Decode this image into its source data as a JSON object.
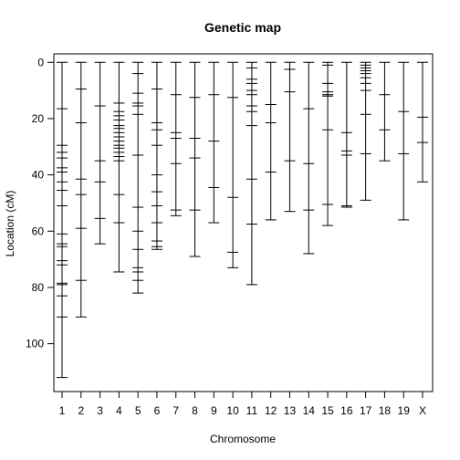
{
  "chart_data": {
    "type": "genetic-map",
    "title": "Genetic map",
    "xlabel": "Chromosome",
    "ylabel": "Location (cM)",
    "ylim": [
      117,
      -3
    ],
    "y_ticks": [
      0,
      20,
      40,
      60,
      80,
      100
    ],
    "grid": false,
    "colors": {
      "line": "#000000",
      "frame": "#000000",
      "background": "#ffffff"
    },
    "chromosomes": [
      {
        "name": "1",
        "markers": [
          0,
          16.5,
          29.5,
          32,
          34,
          37.5,
          39,
          42.5,
          45.5,
          51,
          61,
          64.5,
          65.5,
          70.5,
          72,
          78.5,
          79,
          83,
          90.5,
          112
        ]
      },
      {
        "name": "2",
        "markers": [
          0,
          9.5,
          21.5,
          41.5,
          47,
          59,
          77.5,
          90.5
        ]
      },
      {
        "name": "3",
        "markers": [
          0,
          15.5,
          35,
          42.5,
          55.5,
          64.5
        ]
      },
      {
        "name": "4",
        "markers": [
          0,
          14.5,
          17.5,
          19,
          20.5,
          22.5,
          23.5,
          25,
          26.5,
          28,
          29.5,
          30.5,
          32,
          33.5,
          35,
          47,
          57,
          74.5
        ]
      },
      {
        "name": "5",
        "markers": [
          0,
          4,
          11,
          14.5,
          15.5,
          18.5,
          33,
          51.5,
          60,
          66.5,
          73,
          74.5,
          77.5,
          82
        ]
      },
      {
        "name": "6",
        "markers": [
          0,
          9.5,
          21.5,
          24,
          29.5,
          40,
          46,
          51,
          57,
          63.5,
          65.5,
          66.5
        ]
      },
      {
        "name": "7",
        "markers": [
          0,
          11.5,
          25,
          27,
          36,
          52.5,
          54.5
        ]
      },
      {
        "name": "8",
        "markers": [
          0,
          12.5,
          27,
          34,
          52.5,
          69
        ]
      },
      {
        "name": "9",
        "markers": [
          0,
          11.5,
          28,
          44.5,
          57
        ]
      },
      {
        "name": "10",
        "markers": [
          0,
          12.5,
          48,
          67.5,
          73
        ]
      },
      {
        "name": "11",
        "markers": [
          0,
          2,
          6,
          7.5,
          10,
          11.5,
          15.5,
          17.5,
          22.5,
          41.5,
          57.5,
          79
        ]
      },
      {
        "name": "12",
        "markers": [
          0,
          15,
          21.5,
          39,
          56
        ]
      },
      {
        "name": "13",
        "markers": [
          0,
          2.5,
          10.5,
          35,
          53
        ]
      },
      {
        "name": "14",
        "markers": [
          0,
          16.5,
          36,
          52.5,
          68
        ]
      },
      {
        "name": "15",
        "markers": [
          0,
          1,
          7.5,
          10.5,
          11.5,
          12,
          24,
          50.5,
          58
        ]
      },
      {
        "name": "16",
        "markers": [
          0,
          25,
          31.5,
          33,
          51,
          51.5
        ]
      },
      {
        "name": "17",
        "markers": [
          0,
          1,
          2,
          3,
          4,
          5.5,
          7.5,
          10,
          18.5,
          32.5,
          49
        ]
      },
      {
        "name": "18",
        "markers": [
          0,
          11.5,
          24,
          35
        ]
      },
      {
        "name": "19",
        "markers": [
          0,
          17.5,
          32.5,
          56
        ]
      },
      {
        "name": "X",
        "markers": [
          0,
          19.5,
          28.5,
          42.5
        ]
      }
    ]
  }
}
